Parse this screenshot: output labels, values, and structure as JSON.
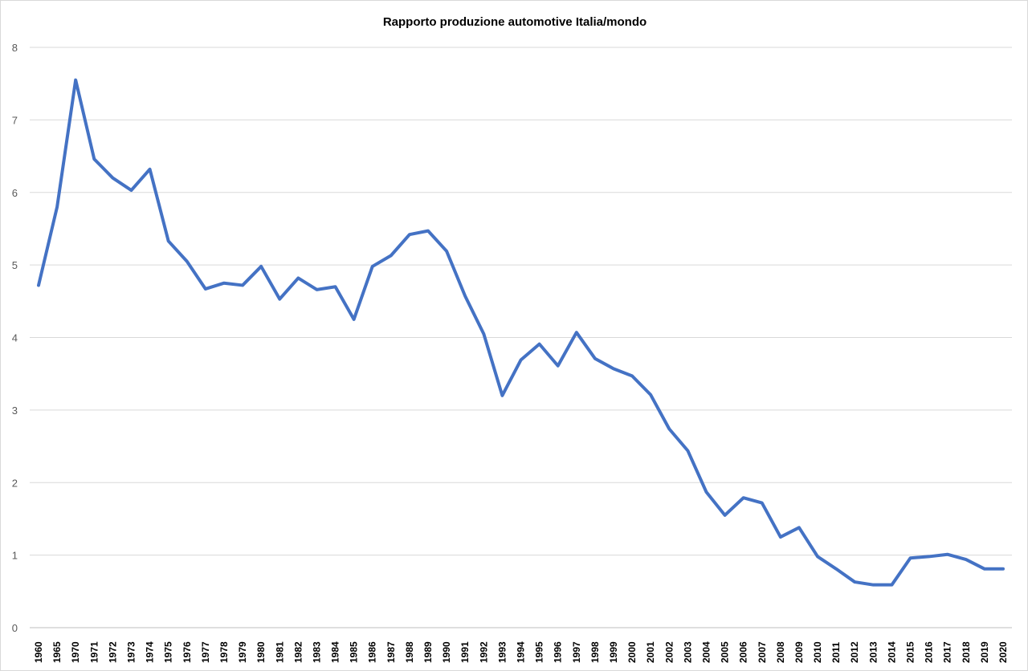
{
  "chart_data": {
    "type": "line",
    "title": "Rapporto produzione automotive Italia/mondo",
    "xlabel": "",
    "ylabel": "",
    "ylim": [
      0,
      8
    ],
    "yticks": [
      "0",
      "1",
      "2",
      "3",
      "4",
      "5",
      "6",
      "7",
      "8"
    ],
    "grid": true,
    "legend": "none",
    "line_color": "#4472c4",
    "categories": [
      "1960",
      "1965",
      "1970",
      "1971",
      "1972",
      "1973",
      "1974",
      "1975",
      "1976",
      "1977",
      "1978",
      "1979",
      "1980",
      "1981",
      "1982",
      "1983",
      "1984",
      "1985",
      "1986",
      "1987",
      "1988",
      "1989",
      "1990",
      "1991",
      "1992",
      "1993",
      "1994",
      "1995",
      "1996",
      "1997",
      "1998",
      "1999",
      "2000",
      "2001",
      "2002",
      "2003",
      "2004",
      "2005",
      "2006",
      "2007",
      "2008",
      "2009",
      "2010",
      "2011",
      "2012",
      "2013",
      "2014",
      "2015",
      "2016",
      "2017",
      "2018",
      "2019",
      "2020"
    ],
    "values": [
      4.72,
      5.8,
      7.55,
      6.46,
      6.2,
      6.03,
      6.32,
      5.33,
      5.05,
      4.67,
      4.75,
      4.72,
      4.98,
      4.53,
      4.82,
      4.66,
      4.7,
      4.25,
      4.98,
      5.13,
      5.42,
      5.47,
      5.19,
      4.57,
      4.05,
      3.2,
      3.69,
      3.91,
      3.61,
      4.07,
      3.71,
      3.57,
      3.47,
      3.21,
      2.74,
      2.44,
      1.87,
      1.55,
      1.79,
      1.72,
      1.25,
      1.38,
      0.98,
      0.81,
      0.63,
      0.59,
      0.59,
      0.96,
      0.98,
      1.01,
      0.94,
      0.81,
      0.81
    ]
  }
}
